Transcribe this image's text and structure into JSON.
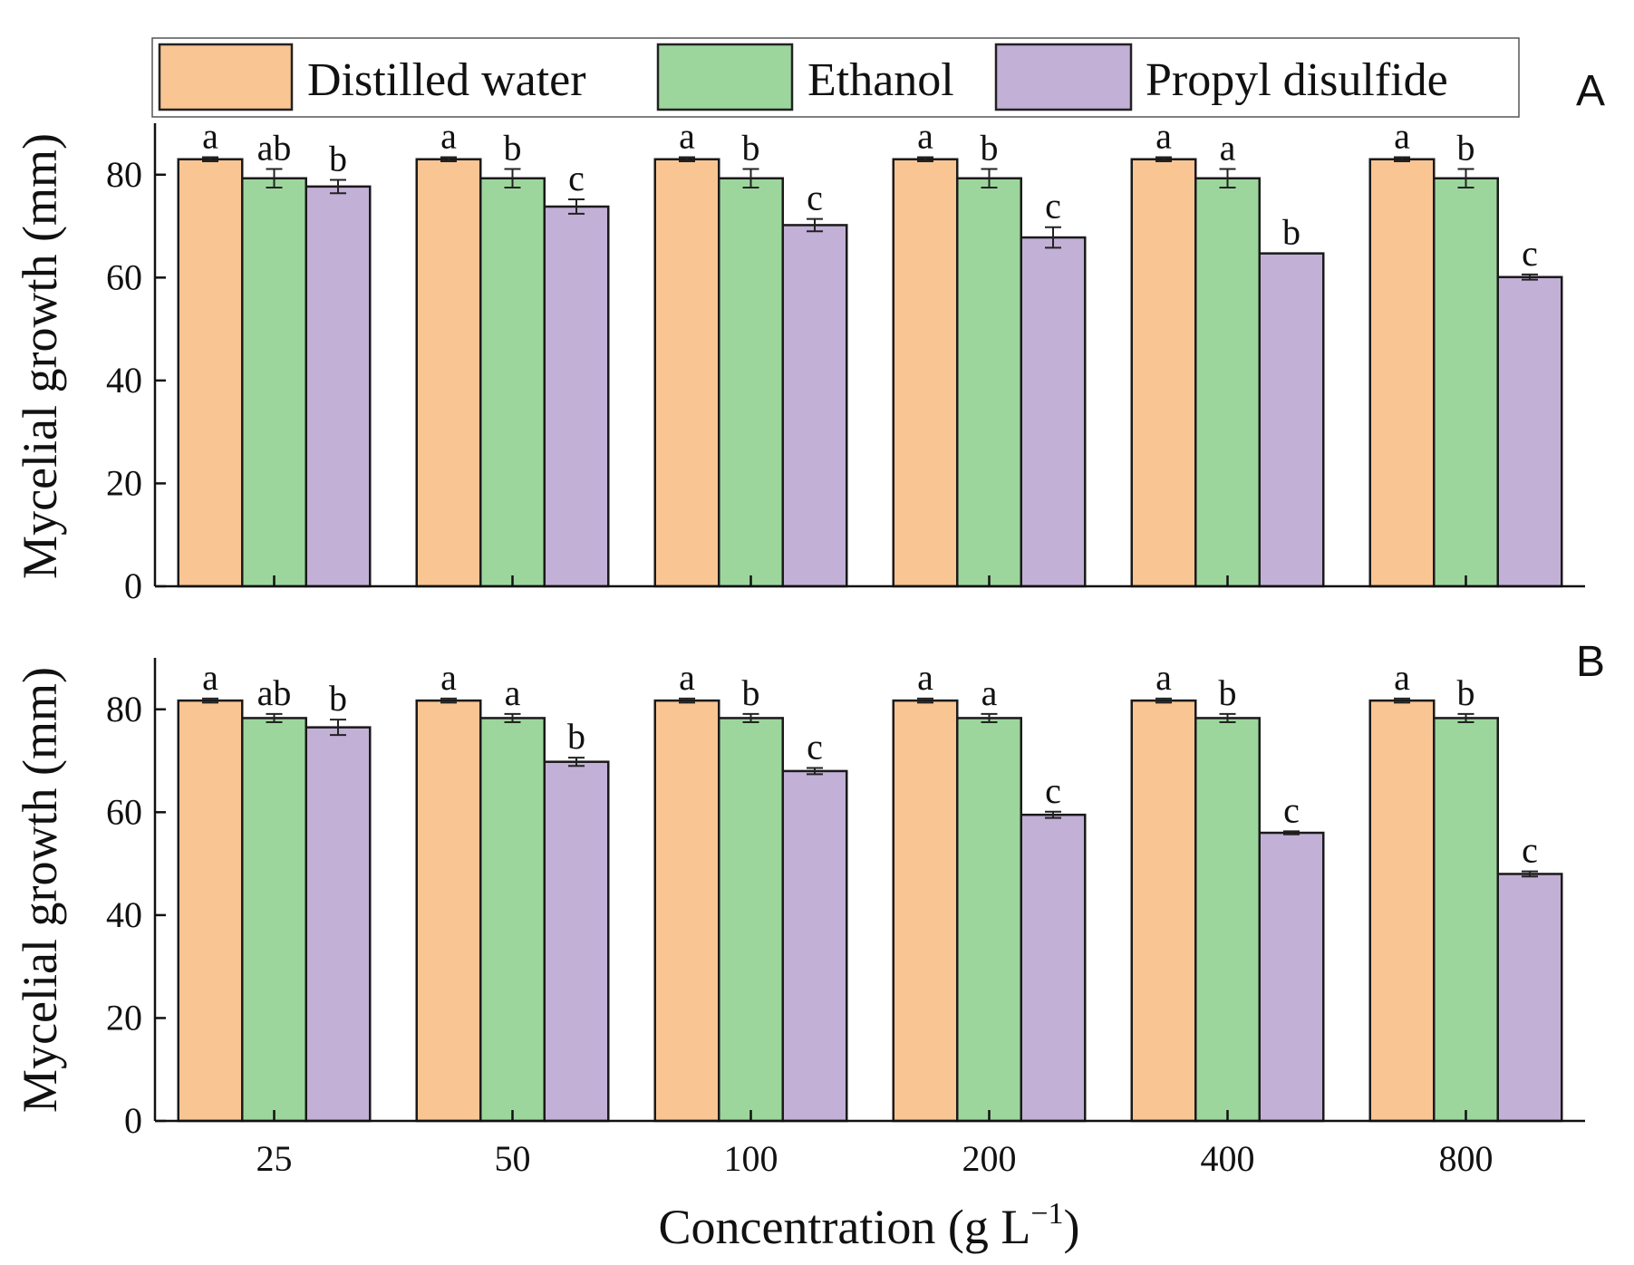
{
  "chart_data": [
    {
      "type": "bar",
      "panel_label": "A",
      "categories": [
        "25",
        "50",
        "100",
        "200",
        "400",
        "800"
      ],
      "xlabel": "Concentration (g L−1)",
      "ylabel": "Mycelial growth (mm)",
      "ylim": [
        0,
        90
      ],
      "yticks": [
        0,
        20,
        40,
        60,
        80
      ],
      "series": [
        {
          "name": "Distilled water",
          "color": "#F9C593",
          "values": [
            83.0,
            83.0,
            83.0,
            83.0,
            83.0,
            83.0
          ],
          "errors": [
            0.4,
            0.4,
            0.4,
            0.4,
            0.4,
            0.4
          ],
          "letters": [
            "a",
            "a",
            "a",
            "a",
            "a",
            "a"
          ]
        },
        {
          "name": "Ethanol",
          "color": "#9DD69D",
          "values": [
            79.3,
            79.3,
            79.3,
            79.3,
            79.3,
            79.3
          ],
          "errors": [
            1.8,
            1.8,
            1.8,
            1.8,
            1.8,
            1.8
          ],
          "letters": [
            "ab",
            "b",
            "b",
            "b",
            "a",
            "b"
          ]
        },
        {
          "name": "Propyl disulfide",
          "color": "#C2B0D6",
          "values": [
            77.7,
            73.8,
            70.2,
            67.8,
            64.7,
            60.1
          ],
          "errors": [
            1.3,
            1.4,
            1.2,
            2.0,
            0.0,
            0.5
          ],
          "letters": [
            "b",
            "c",
            "c",
            "c",
            "b",
            "c"
          ]
        }
      ]
    },
    {
      "type": "bar",
      "panel_label": "B",
      "categories": [
        "25",
        "50",
        "100",
        "200",
        "400",
        "800"
      ],
      "xlabel": "Concentration (g L−1)",
      "ylabel": "Mycelial growth (mm)",
      "ylim": [
        0,
        90
      ],
      "yticks": [
        0,
        20,
        40,
        60,
        80
      ],
      "series": [
        {
          "name": "Distilled water",
          "color": "#F9C593",
          "values": [
            81.7,
            81.7,
            81.7,
            81.7,
            81.7,
            81.7
          ],
          "errors": [
            0.4,
            0.4,
            0.4,
            0.4,
            0.4,
            0.4
          ],
          "letters": [
            "a",
            "a",
            "a",
            "a",
            "a",
            "a"
          ]
        },
        {
          "name": "Ethanol",
          "color": "#9DD69D",
          "values": [
            78.3,
            78.3,
            78.3,
            78.3,
            78.3,
            78.3
          ],
          "errors": [
            0.8,
            0.8,
            0.8,
            0.8,
            0.8,
            0.8
          ],
          "letters": [
            "ab",
            "a",
            "b",
            "a",
            "b",
            "b"
          ]
        },
        {
          "name": "Propyl disulfide",
          "color": "#C2B0D6",
          "values": [
            76.5,
            69.8,
            68.0,
            59.5,
            56.0,
            48.0
          ],
          "errors": [
            1.5,
            0.8,
            0.6,
            0.6,
            0.3,
            0.5
          ],
          "letters": [
            "b",
            "b",
            "c",
            "c",
            "c",
            "c"
          ]
        }
      ]
    }
  ],
  "legend": {
    "placement": "top",
    "items": [
      "Distilled water",
      "Ethanol",
      "Propyl disulfide"
    ]
  },
  "xlabel": {
    "main": "Concentration (g L",
    "sup": "−1",
    "close": ")"
  }
}
